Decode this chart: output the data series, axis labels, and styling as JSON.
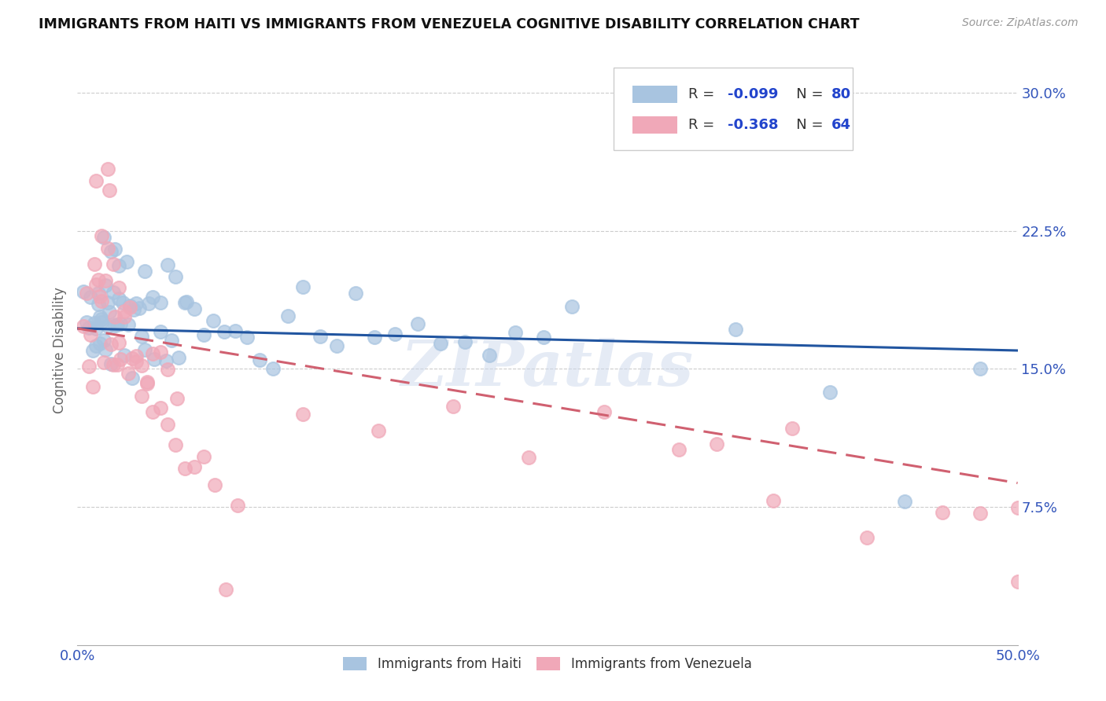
{
  "title": "IMMIGRANTS FROM HAITI VS IMMIGRANTS FROM VENEZUELA COGNITIVE DISABILITY CORRELATION CHART",
  "source": "Source: ZipAtlas.com",
  "ylabel": "Cognitive Disability",
  "xlim": [
    0.0,
    0.5
  ],
  "ylim": [
    0.0,
    0.32
  ],
  "yticks": [
    0.075,
    0.15,
    0.225,
    0.3
  ],
  "ytick_labels": [
    "7.5%",
    "15.0%",
    "22.5%",
    "30.0%"
  ],
  "xtick_left_label": "0.0%",
  "xtick_right_label": "50.0%",
  "haiti_R": "-0.099",
  "haiti_N": "80",
  "venezuela_R": "-0.368",
  "venezuela_N": "64",
  "haiti_color": "#a8c4e0",
  "venezuela_color": "#f0a8b8",
  "haiti_line_color": "#2155a0",
  "venezuela_line_color": "#d06070",
  "haiti_line_y0": 0.172,
  "haiti_line_y1": 0.16,
  "venezuela_line_y0": 0.172,
  "venezuela_line_y1": 0.088,
  "watermark": "ZIPatlas",
  "background_color": "#ffffff",
  "grid_color": "#cccccc",
  "legend_label_haiti": "Immigrants from Haiti",
  "legend_label_venezuela": "Immigrants from Venezuela",
  "haiti_x": [
    0.003,
    0.005,
    0.006,
    0.007,
    0.008,
    0.009,
    0.01,
    0.01,
    0.011,
    0.011,
    0.012,
    0.012,
    0.013,
    0.013,
    0.014,
    0.015,
    0.015,
    0.016,
    0.017,
    0.018,
    0.019,
    0.02,
    0.021,
    0.022,
    0.023,
    0.025,
    0.027,
    0.029,
    0.031,
    0.034,
    0.036,
    0.038,
    0.041,
    0.044,
    0.047,
    0.05,
    0.054,
    0.058,
    0.062,
    0.067,
    0.072,
    0.078,
    0.084,
    0.09,
    0.097,
    0.104,
    0.112,
    0.12,
    0.129,
    0.138,
    0.148,
    0.158,
    0.169,
    0.181,
    0.193,
    0.206,
    0.219,
    0.233,
    0.248,
    0.263,
    0.014,
    0.016,
    0.018,
    0.02,
    0.022,
    0.024,
    0.026,
    0.028,
    0.03,
    0.033,
    0.036,
    0.04,
    0.044,
    0.048,
    0.052,
    0.057,
    0.35,
    0.4,
    0.44,
    0.48
  ],
  "haiti_y": [
    0.175,
    0.18,
    0.172,
    0.185,
    0.168,
    0.175,
    0.172,
    0.18,
    0.175,
    0.185,
    0.17,
    0.18,
    0.172,
    0.178,
    0.168,
    0.175,
    0.19,
    0.172,
    0.178,
    0.168,
    0.175,
    0.172,
    0.178,
    0.168,
    0.175,
    0.172,
    0.178,
    0.168,
    0.175,
    0.172,
    0.168,
    0.175,
    0.172,
    0.165,
    0.175,
    0.172,
    0.168,
    0.172,
    0.165,
    0.172,
    0.168,
    0.172,
    0.165,
    0.175,
    0.172,
    0.168,
    0.175,
    0.172,
    0.165,
    0.168,
    0.172,
    0.165,
    0.168,
    0.172,
    0.165,
    0.168,
    0.172,
    0.165,
    0.168,
    0.172,
    0.225,
    0.205,
    0.215,
    0.198,
    0.21,
    0.195,
    0.22,
    0.195,
    0.185,
    0.195,
    0.188,
    0.192,
    0.185,
    0.192,
    0.185,
    0.188,
    0.168,
    0.13,
    0.08,
    0.168
  ],
  "venezuela_x": [
    0.003,
    0.005,
    0.006,
    0.007,
    0.008,
    0.009,
    0.01,
    0.011,
    0.012,
    0.013,
    0.014,
    0.015,
    0.016,
    0.017,
    0.018,
    0.019,
    0.02,
    0.021,
    0.022,
    0.023,
    0.025,
    0.027,
    0.029,
    0.031,
    0.034,
    0.037,
    0.04,
    0.044,
    0.048,
    0.053,
    0.01,
    0.013,
    0.016,
    0.019,
    0.022,
    0.025,
    0.028,
    0.031,
    0.034,
    0.037,
    0.04,
    0.044,
    0.048,
    0.052,
    0.057,
    0.062,
    0.067,
    0.073,
    0.079,
    0.085,
    0.12,
    0.16,
    0.2,
    0.24,
    0.28,
    0.32,
    0.37,
    0.42,
    0.46,
    0.5,
    0.34,
    0.38,
    0.48,
    0.5
  ],
  "venezuela_y": [
    0.172,
    0.178,
    0.175,
    0.185,
    0.168,
    0.178,
    0.175,
    0.172,
    0.18,
    0.175,
    0.168,
    0.175,
    0.272,
    0.255,
    0.168,
    0.162,
    0.168,
    0.155,
    0.165,
    0.158,
    0.162,
    0.155,
    0.158,
    0.152,
    0.155,
    0.148,
    0.152,
    0.145,
    0.148,
    0.142,
    0.235,
    0.225,
    0.215,
    0.205,
    0.195,
    0.188,
    0.178,
    0.168,
    0.158,
    0.148,
    0.138,
    0.128,
    0.118,
    0.108,
    0.098,
    0.09,
    0.082,
    0.075,
    0.068,
    0.062,
    0.148,
    0.138,
    0.128,
    0.118,
    0.108,
    0.098,
    0.088,
    0.078,
    0.068,
    0.06,
    0.108,
    0.095,
    0.065,
    0.025
  ]
}
